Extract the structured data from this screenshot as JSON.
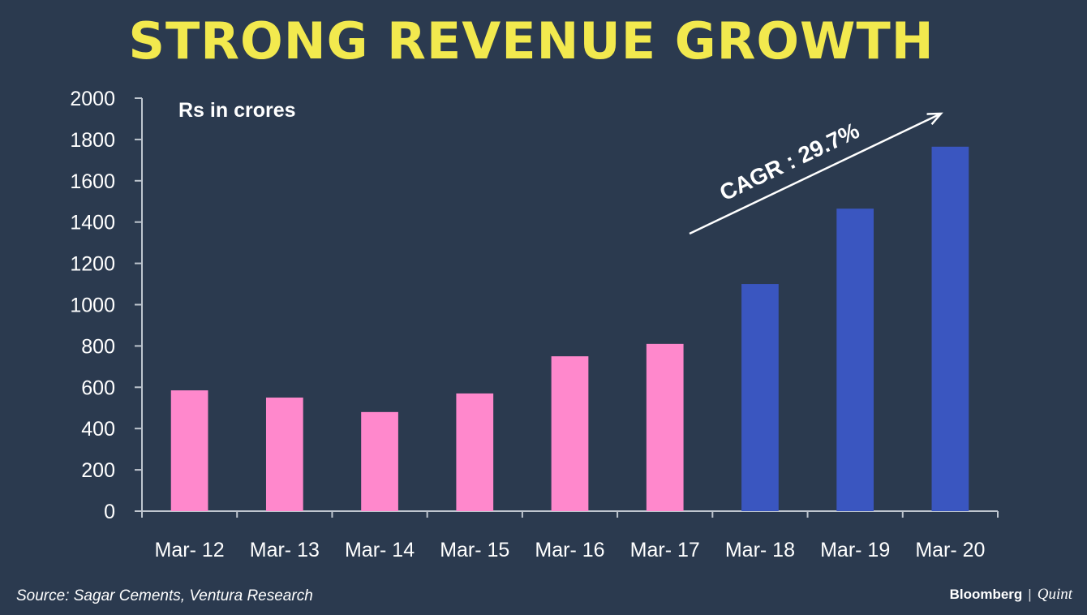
{
  "chart_data": {
    "type": "bar",
    "title": "STRONG REVENUE GROWTH",
    "unit_label": "Rs in crores",
    "categories": [
      "Mar- 12",
      "Mar- 13",
      "Mar- 14",
      "Mar- 15",
      "Mar- 16",
      "Mar- 17",
      "Mar- 18",
      "Mar- 19",
      "Mar- 20"
    ],
    "values": [
      585,
      550,
      480,
      570,
      750,
      810,
      1100,
      1465,
      1765
    ],
    "bar_colors": [
      "#ff88cc",
      "#ff88cc",
      "#ff88cc",
      "#ff88cc",
      "#ff88cc",
      "#ff88cc",
      "#3a56c0",
      "#3a56c0",
      "#3a56c0"
    ],
    "ylim": [
      0,
      2000
    ],
    "yticks": [
      0,
      200,
      400,
      600,
      800,
      1000,
      1200,
      1400,
      1600,
      1800,
      2000
    ],
    "annotation": "CAGR : 29.7%",
    "xlabel": "",
    "ylabel": ""
  },
  "footer": {
    "source": "Source: Sagar Cements, Ventura Research",
    "brand_main": "Bloomberg",
    "brand_divider": "|",
    "brand_sub": "Quint"
  },
  "colors": {
    "background": "#2b3a4f",
    "title": "#f2e94e",
    "axis": "#bfc6cf",
    "text": "#ffffff"
  }
}
